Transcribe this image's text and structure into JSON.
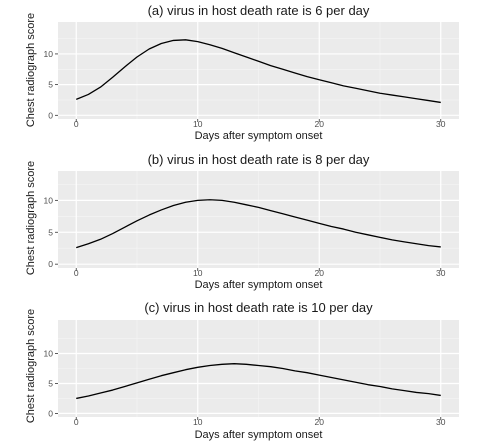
{
  "chart_data": [
    {
      "type": "line",
      "title": "(a) virus in host death rate is 6 per day",
      "xlabel": "Days after symptom onset",
      "ylabel": "Chest radiograph score",
      "xlim": [
        -1.5,
        31.5
      ],
      "ylim": [
        -0.6,
        15.2
      ],
      "xticks": [
        0,
        10,
        20,
        30
      ],
      "yticks": [
        0,
        5,
        10
      ],
      "grid": true,
      "series": [
        {
          "color": "#000000",
          "x": [
            0,
            1,
            2,
            3,
            4,
            5,
            6,
            7,
            8,
            9,
            10,
            11,
            12,
            13,
            14,
            15,
            16,
            17,
            18,
            19,
            20,
            21,
            22,
            23,
            24,
            25,
            26,
            27,
            28,
            29,
            30
          ],
          "y": [
            2.6,
            3.4,
            4.6,
            6.2,
            7.9,
            9.5,
            10.8,
            11.7,
            12.2,
            12.3,
            12.0,
            11.5,
            10.9,
            10.2,
            9.5,
            8.8,
            8.1,
            7.5,
            6.9,
            6.3,
            5.8,
            5.3,
            4.8,
            4.4,
            4.0,
            3.6,
            3.3,
            3.0,
            2.7,
            2.4,
            2.1
          ]
        }
      ]
    },
    {
      "type": "line",
      "title": "(b) virus in host death rate is 8 per day",
      "xlabel": "Days after symptom onset",
      "ylabel": "Chest radiograph score",
      "xlim": [
        -1.5,
        31.5
      ],
      "ylim": [
        -0.6,
        14.6
      ],
      "xticks": [
        0,
        10,
        20,
        30
      ],
      "yticks": [
        0,
        5,
        10
      ],
      "grid": true,
      "series": [
        {
          "color": "#000000",
          "x": [
            0,
            1,
            2,
            3,
            4,
            5,
            6,
            7,
            8,
            9,
            10,
            11,
            12,
            13,
            14,
            15,
            16,
            17,
            18,
            19,
            20,
            21,
            22,
            23,
            24,
            25,
            26,
            27,
            28,
            29,
            30
          ],
          "y": [
            2.6,
            3.2,
            3.9,
            4.8,
            5.8,
            6.8,
            7.7,
            8.5,
            9.2,
            9.7,
            10.0,
            10.1,
            10.0,
            9.7,
            9.3,
            8.9,
            8.4,
            7.9,
            7.4,
            6.9,
            6.4,
            5.9,
            5.5,
            5.0,
            4.6,
            4.2,
            3.8,
            3.5,
            3.2,
            2.9,
            2.7
          ]
        }
      ]
    },
    {
      "type": "line",
      "title": "(c) virus in host death rate is 10 per day",
      "xlabel": "Days after symptom onset",
      "ylabel": "Chest radiograph score",
      "xlim": [
        -1.5,
        31.5
      ],
      "ylim": [
        -0.6,
        15.6
      ],
      "xticks": [
        0,
        10,
        20,
        30
      ],
      "yticks": [
        0,
        5,
        10
      ],
      "grid": true,
      "series": [
        {
          "color": "#000000",
          "x": [
            0,
            1,
            2,
            3,
            4,
            5,
            6,
            7,
            8,
            9,
            10,
            11,
            12,
            13,
            14,
            15,
            16,
            17,
            18,
            19,
            20,
            21,
            22,
            23,
            24,
            25,
            26,
            27,
            28,
            29,
            30
          ],
          "y": [
            2.5,
            2.9,
            3.4,
            3.9,
            4.5,
            5.1,
            5.7,
            6.3,
            6.8,
            7.3,
            7.7,
            8.0,
            8.2,
            8.3,
            8.2,
            8.0,
            7.8,
            7.5,
            7.1,
            6.8,
            6.4,
            6.0,
            5.6,
            5.2,
            4.8,
            4.5,
            4.1,
            3.8,
            3.5,
            3.3,
            3.0
          ]
        }
      ]
    }
  ]
}
